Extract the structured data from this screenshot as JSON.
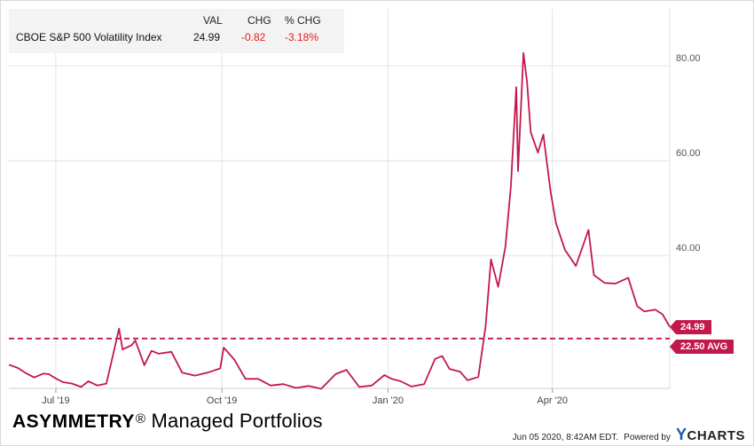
{
  "legend": {
    "headers": {
      "val": "VAL",
      "chg": "CHG",
      "pct": "% CHG"
    },
    "series_name": "CBOE S&P 500 Volatility Index",
    "val": "24.99",
    "chg": "-0.82",
    "pct": "-3.18%"
  },
  "badges": {
    "last": "24.99",
    "avg": "22.50 AVG"
  },
  "footer": {
    "brand_bold": "ASYMMETRY",
    "brand_mark": "®",
    "brand_rest": "Managed Portfolios",
    "timestamp": "Jun 05 2020, 8:42AM EDT.",
    "powered_by": "Powered by",
    "ycharts_y": "Y",
    "ycharts_rest": "CHARTS"
  },
  "colors": {
    "line": "#c2184b",
    "grid": "#e2e2e2",
    "negative": "#e0201f"
  },
  "chart_data": {
    "type": "line",
    "title": "",
    "xlabel": "",
    "ylabel": "",
    "x_start": "2019-06-05",
    "x_end": "2020-06-05",
    "ylim": [
      12,
      92
    ],
    "yticks": [
      40,
      60,
      80
    ],
    "ytick_labels": [
      "40.00",
      "60.00",
      "80.00"
    ],
    "xticks": [
      {
        "date": "2019-07-01",
        "label": "Jul '19"
      },
      {
        "date": "2019-10-01",
        "label": "Oct '19"
      },
      {
        "date": "2020-01-01",
        "label": "Jan '20"
      },
      {
        "date": "2020-04-01",
        "label": "Apr '20"
      }
    ],
    "grid": true,
    "average": {
      "value": 22.5,
      "label": "22.50 AVG",
      "style": "dashed"
    },
    "last": {
      "value": 24.99,
      "label": "24.99"
    },
    "series": [
      {
        "name": "CBOE S&P 500 Volatility Index",
        "x": [
          "2019-06-05",
          "2019-06-10",
          "2019-06-14",
          "2019-06-19",
          "2019-06-24",
          "2019-06-27",
          "2019-07-01",
          "2019-07-05",
          "2019-07-10",
          "2019-07-15",
          "2019-07-19",
          "2019-07-24",
          "2019-07-29",
          "2019-08-01",
          "2019-08-05",
          "2019-08-07",
          "2019-08-12",
          "2019-08-14",
          "2019-08-19",
          "2019-08-23",
          "2019-08-27",
          "2019-09-03",
          "2019-09-09",
          "2019-09-16",
          "2019-09-23",
          "2019-09-30",
          "2019-10-02",
          "2019-10-08",
          "2019-10-14",
          "2019-10-21",
          "2019-10-28",
          "2019-11-04",
          "2019-11-11",
          "2019-11-18",
          "2019-11-25",
          "2019-12-03",
          "2019-12-09",
          "2019-12-16",
          "2019-12-23",
          "2019-12-30",
          "2020-01-03",
          "2020-01-08",
          "2020-01-14",
          "2020-01-21",
          "2020-01-27",
          "2020-01-31",
          "2020-02-04",
          "2020-02-10",
          "2020-02-14",
          "2020-02-20",
          "2020-02-24",
          "2020-02-27",
          "2020-03-02",
          "2020-03-06",
          "2020-03-09",
          "2020-03-12",
          "2020-03-13",
          "2020-03-16",
          "2020-03-18",
          "2020-03-20",
          "2020-03-24",
          "2020-03-27",
          "2020-03-31",
          "2020-04-03",
          "2020-04-08",
          "2020-04-14",
          "2020-04-21",
          "2020-04-24",
          "2020-04-30",
          "2020-05-06",
          "2020-05-13",
          "2020-05-18",
          "2020-05-22",
          "2020-05-28",
          "2020-06-01",
          "2020-06-05"
        ],
        "values": [
          17.0,
          16.3,
          15.3,
          14.3,
          15.1,
          15.0,
          14.1,
          13.3,
          13.0,
          12.3,
          13.5,
          12.6,
          13.0,
          17.9,
          24.6,
          20.2,
          21.1,
          22.1,
          16.9,
          19.9,
          19.3,
          19.7,
          15.3,
          14.7,
          15.3,
          16.2,
          20.6,
          18.0,
          14.0,
          14.0,
          12.6,
          12.9,
          12.1,
          12.5,
          11.9,
          15.0,
          15.9,
          12.3,
          12.6,
          14.8,
          14.0,
          13.5,
          12.4,
          12.9,
          18.2,
          18.8,
          16.1,
          15.5,
          13.7,
          14.4,
          25.0,
          39.2,
          33.4,
          41.9,
          54.5,
          75.5,
          57.8,
          82.7,
          76.5,
          66.0,
          61.7,
          65.5,
          53.5,
          46.8,
          41.2,
          37.8,
          45.4,
          35.9,
          34.2,
          34.1,
          35.3,
          29.3,
          28.2,
          28.6,
          27.6,
          24.99
        ]
      }
    ]
  }
}
